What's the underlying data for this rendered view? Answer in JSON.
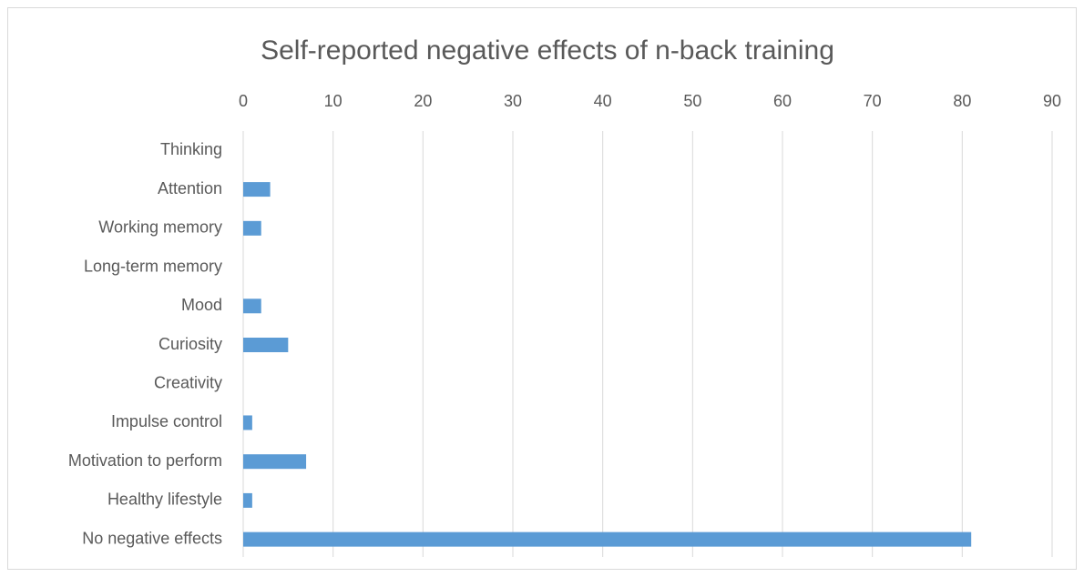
{
  "chart_data": {
    "type": "bar",
    "orientation": "horizontal",
    "title": "Self-reported negative effects of n-back training",
    "categories": [
      "Thinking",
      "Attention",
      "Working memory",
      "Long-term memory",
      "Mood",
      "Curiosity",
      "Creativity",
      "Impulse control",
      "Motivation to perform",
      "Healthy lifestyle",
      "No negative effects"
    ],
    "values": [
      0,
      3,
      2,
      0,
      2,
      5,
      0,
      1,
      7,
      1,
      81
    ],
    "color": "#5b9bd5",
    "xlim": [
      0,
      90
    ],
    "xticks": [
      0,
      10,
      20,
      30,
      40,
      50,
      60,
      70,
      80,
      90
    ],
    "grid": true
  }
}
